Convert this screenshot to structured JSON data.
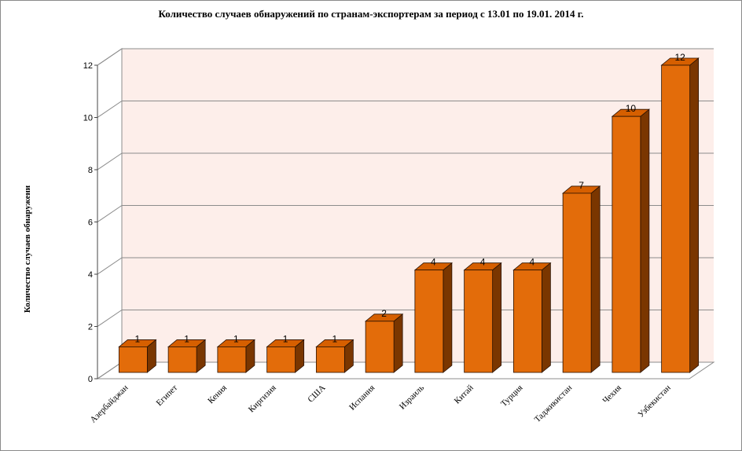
{
  "chart_data": {
    "type": "bar",
    "title": "Количество случаев обнаружений по странам-экспортерам за период с 13.01 по 19.01. 2014 г.",
    "xlabel": "",
    "ylabel": "Количество случаев обнаружени",
    "categories": [
      "Азербайджан",
      "Египет",
      "Кения",
      "Киргизия",
      "США",
      "Испания",
      "Израиль",
      "Китай",
      "Турция",
      "Таджикистан",
      "Чехия",
      "Узбекистан"
    ],
    "values": [
      1,
      1,
      1,
      1,
      1,
      2,
      4,
      4,
      4,
      7,
      10,
      12
    ],
    "ylim": [
      0,
      12
    ],
    "yticks": [
      0,
      2,
      4,
      6,
      8,
      10,
      12
    ],
    "grid": true,
    "legend": "none",
    "data_labels": true,
    "style": "3d-column",
    "colors": {
      "bar_front": "#e36c0a",
      "bar_top": "#d65f00",
      "bar_side": "#7a3600",
      "back_wall": "#fdeeea",
      "grid": "#8c8c8c"
    }
  }
}
